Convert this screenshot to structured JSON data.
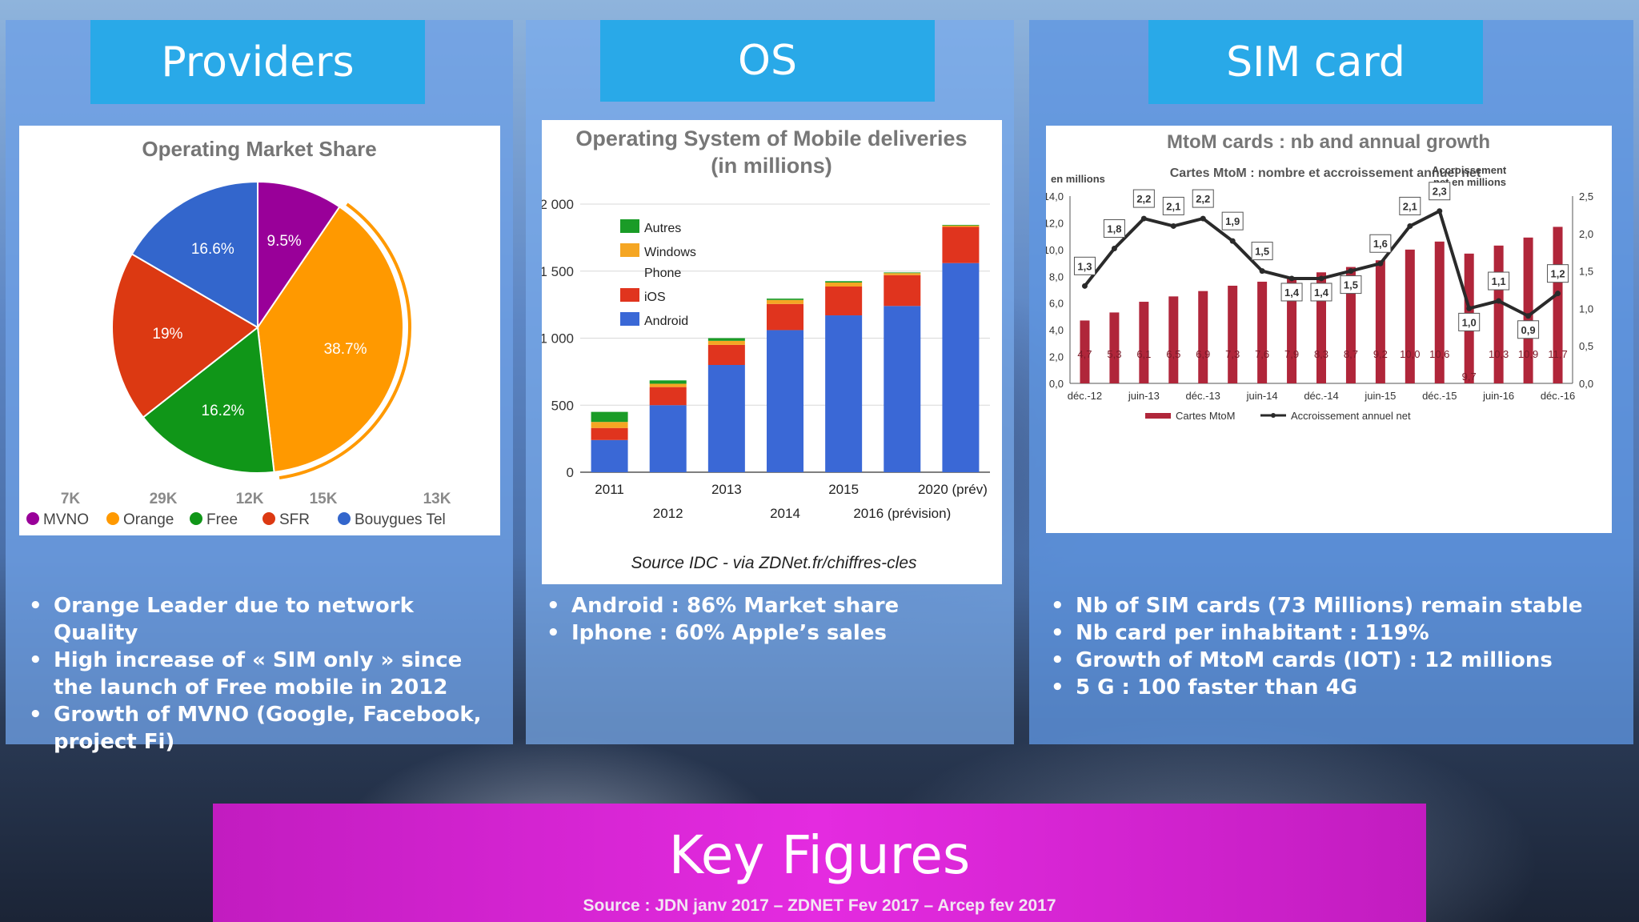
{
  "panels": {
    "providers": {
      "title": "Providers",
      "bullets": [
        "Orange Leader due to network Quality",
        "High increase of « SIM only » since the launch of Free mobile in 2012",
        "Growth of MVNO (Google, Facebook, project Fi)"
      ]
    },
    "os": {
      "title": "OS",
      "bullets": [
        "Android : 86% Market share",
        "Iphone : 60% Apple’s sales"
      ]
    },
    "sim": {
      "title": "SIM card",
      "bullets": [
        "Nb of SIM cards (73 Millions) remain stable",
        "Nb card per inhabitant : 119%",
        "Growth of  MtoM cards (IOT) : 12 millions",
        "5 G : 100 faster than 4G"
      ]
    }
  },
  "footer": {
    "title": "Key Figures",
    "source": "Source : JDN janv 2017 – ZDNET Fev 2017 – Arcep fev 2017"
  },
  "chart_data": [
    {
      "type": "pie",
      "title": "Operating Market Share",
      "slices": [
        {
          "name": "MVNO",
          "value": 9.5,
          "label": "9.5%",
          "legend_value": "7K",
          "color": "#990099"
        },
        {
          "name": "Orange",
          "value": 38.7,
          "label": "38.7%",
          "legend_value": "29K",
          "color": "#ff9900"
        },
        {
          "name": "Free",
          "value": 16.2,
          "label": "16.2%",
          "legend_value": "12K",
          "color": "#109618"
        },
        {
          "name": "SFR",
          "value": 19,
          "label": "19%",
          "legend_value": "15K",
          "color": "#dc3912"
        },
        {
          "name": "Bouygues Tel",
          "value": 16.6,
          "label": "16.6%",
          "legend_value": "13K",
          "color": "#3366cc"
        }
      ],
      "legend_position": "bottom"
    },
    {
      "type": "bar",
      "stacked": true,
      "title": "Operating System of Mobile deliveries",
      "subtitle": "(in millions)",
      "source": "Source IDC - via ZDNet.fr/chiffres-cles",
      "categories": [
        "2011",
        "2012",
        "2013",
        "2014",
        "2015",
        "2016 (prévision)",
        "2020 (prév)"
      ],
      "yticks": [
        "0",
        "500",
        "1 000",
        "1 500",
        "2 000"
      ],
      "ylim": [
        0,
        2000
      ],
      "series": [
        {
          "name": "Android",
          "color": "#3a68d6",
          "values": [
            240,
            500,
            800,
            1060,
            1170,
            1240,
            1560
          ]
        },
        {
          "name": "iOS",
          "color": "#e0341e",
          "values": [
            90,
            135,
            150,
            195,
            215,
            230,
            270
          ]
        },
        {
          "name": "Windows Phone",
          "color": "#f5a623",
          "values": [
            45,
            25,
            30,
            30,
            30,
            15,
            10
          ]
        },
        {
          "name": "Autres",
          "color": "#1a9c27",
          "values": [
            75,
            25,
            20,
            10,
            10,
            5,
            5
          ]
        }
      ],
      "legend_position": "top-left",
      "grid": true
    },
    {
      "type": "bar",
      "title": "MtoM cards  : nb and  annual growth",
      "subtitle": "Cartes MtoM : nombre et accroissement annuel net",
      "left_axis_label": "en millions",
      "right_axis_label": "Accroissement net en millions",
      "yticks_left": [
        "0,0",
        "2,0",
        "4,0",
        "6,0",
        "8,0",
        "10,0",
        "12,0",
        "14,0"
      ],
      "yticks_right": [
        "0,0",
        "0,5",
        "1,0",
        "1,5",
        "2,0",
        "2,5"
      ],
      "ylim_left": [
        0,
        14
      ],
      "ylim_right": [
        0,
        2.5
      ],
      "x_tick_labels": [
        "déc.-12",
        "juin-13",
        "déc.-13",
        "juin-14",
        "déc.-14",
        "juin-15",
        "déc.-15",
        "juin-16",
        "déc.-16"
      ],
      "series": [
        {
          "name": "Cartes MtoM",
          "type": "bar",
          "color": "#b0263a",
          "values": [
            4.7,
            5.3,
            6.1,
            6.5,
            6.9,
            7.3,
            7.6,
            7.9,
            8.3,
            8.7,
            9.2,
            10.0,
            10.6,
            9.7,
            10.3,
            10.9,
            11.7
          ],
          "labels": [
            "4,7",
            "5,3",
            "6,1",
            "6,5",
            "6,9",
            "7,3",
            "7,6",
            "7,9",
            "8,3",
            "8,7",
            "9,2",
            "10,0",
            "10,6",
            "9,7",
            "10,3",
            "10,9",
            "11,7"
          ]
        },
        {
          "name": "Accroissement annuel net",
          "type": "line",
          "color": "#2a2a2a",
          "values": [
            1.3,
            1.8,
            2.2,
            2.1,
            2.2,
            1.9,
            1.5,
            1.4,
            1.4,
            1.5,
            1.6,
            2.1,
            2.3,
            1.0,
            1.1,
            0.9,
            1.2
          ],
          "labels": [
            "1,3",
            "1,8",
            "2,2",
            "2,1",
            "2,2",
            "1,9",
            "1,5",
            "1,4",
            "1,4",
            "1,5",
            "1,6",
            "2,1",
            "2,3",
            "1,0",
            "1,1",
            "0,9",
            "1,2"
          ]
        }
      ],
      "legend_position": "bottom"
    }
  ]
}
